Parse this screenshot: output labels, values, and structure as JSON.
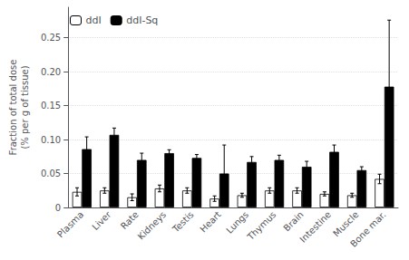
{
  "chart_data": {
    "type": "bar",
    "categories": [
      "Plasma",
      "Liver",
      "Rate",
      "Kidneys",
      "Testis",
      "Heart",
      "Lungs",
      "Thymus",
      "Brain",
      "Intestine",
      "Muscle",
      "Bone mar."
    ],
    "series": [
      {
        "name": "ddI",
        "color": "white",
        "values": [
          0.023,
          0.025,
          0.015,
          0.028,
          0.025,
          0.013,
          0.018,
          0.025,
          0.025,
          0.02,
          0.018,
          0.042
        ],
        "errors": [
          0.006,
          0.004,
          0.005,
          0.005,
          0.004,
          0.004,
          0.003,
          0.004,
          0.004,
          0.003,
          0.003,
          0.007
        ]
      },
      {
        "name": "ddI-Sq",
        "color": "black",
        "values": [
          0.086,
          0.107,
          0.07,
          0.08,
          0.073,
          0.05,
          0.067,
          0.07,
          0.06,
          0.082,
          0.055,
          0.178
        ],
        "errors": [
          0.018,
          0.01,
          0.01,
          0.005,
          0.005,
          0.042,
          0.008,
          0.007,
          0.008,
          0.01,
          0.005,
          0.098
        ]
      }
    ],
    "ylabel": "Fraction of total dose\n(% per g of tissue)",
    "ylim": [
      0,
      0.295
    ],
    "yticks": [
      0,
      0.05,
      {
        "value": 0.1,
        "label": "0.10"
      },
      0.15,
      {
        "value": 0.2,
        "label": "0.20"
      },
      0.25
    ],
    "grid": true,
    "legend": "upper left"
  }
}
